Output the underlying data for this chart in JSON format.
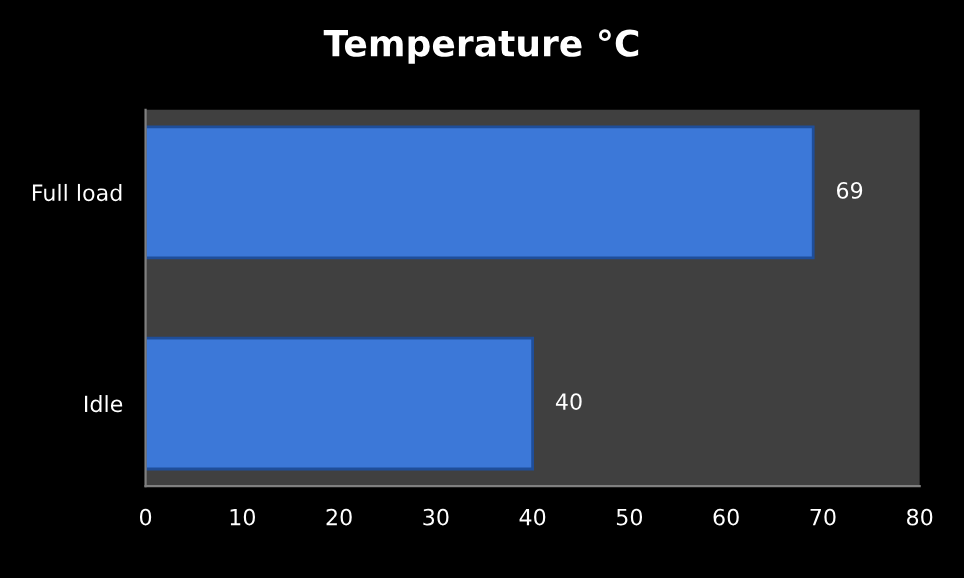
{
  "chart_data": {
    "type": "bar",
    "orientation": "horizontal",
    "title": "Temperature °C",
    "categories": [
      "Full load",
      "Idle"
    ],
    "values": [
      69,
      40
    ],
    "color": "#3c78d8",
    "xlim": [
      0,
      80
    ],
    "xticks": [
      0,
      10,
      20,
      30,
      40,
      50,
      60,
      70,
      80
    ],
    "grid": false,
    "data_labels": true
  }
}
